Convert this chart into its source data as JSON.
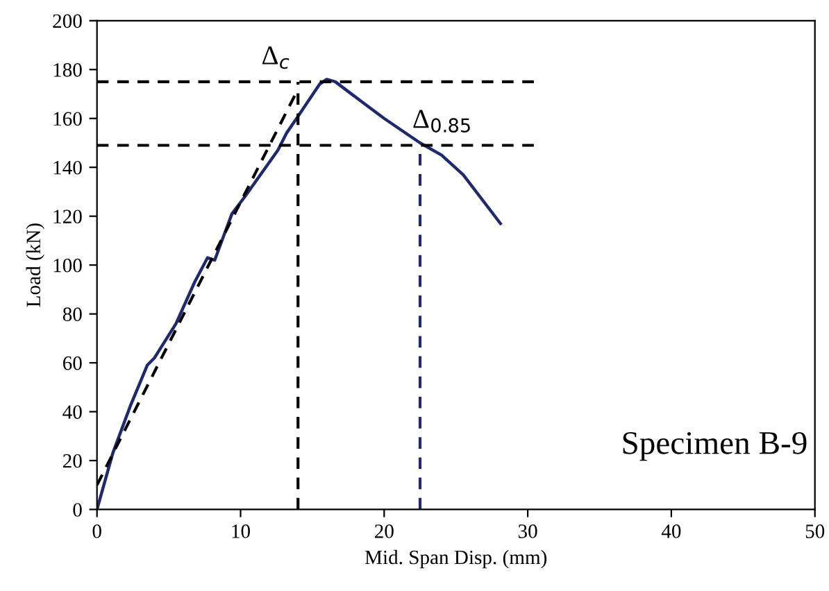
{
  "chart_data": {
    "type": "line",
    "xlabel": "Mid. Span Disp. (mm)",
    "ylabel": "Load (kN)",
    "xlim": [
      0,
      50
    ],
    "xticks": [
      0,
      10,
      20,
      30,
      40,
      50
    ],
    "ylim": [
      0,
      200
    ],
    "yticks": [
      0,
      20,
      40,
      60,
      80,
      100,
      120,
      140,
      160,
      180,
      200
    ],
    "grid": false,
    "legend": false,
    "series": [
      {
        "color": "#1f2a6e",
        "line_style": "solid",
        "x": [
          0,
          1.1,
          2.3,
          3.5,
          4.0,
          5.5,
          6.8,
          7.7,
          8.2,
          8.7,
          9.4,
          10.3,
          12.6,
          13.2,
          13.9,
          15.5,
          16.0,
          16.6,
          18.4,
          20,
          22.5,
          24,
          25.5,
          28.1
        ],
        "values": [
          0,
          23,
          42,
          59,
          62,
          76,
          93,
          103,
          102,
          110,
          121,
          128,
          147,
          154,
          160,
          174,
          176,
          175,
          167,
          160,
          150,
          145,
          137,
          117
        ]
      },
      {
        "color": "#000000",
        "line_style": "dashed",
        "x": [
          0,
          14
        ],
        "values": [
          10,
          172
        ]
      },
      {
        "color": "#000000",
        "line_style": "dashed",
        "x": [
          0,
          30.5
        ],
        "values": [
          175,
          175
        ]
      },
      {
        "color": "#000000",
        "line_style": "dashed",
        "x": [
          0,
          30.5
        ],
        "values": [
          149,
          149
        ]
      },
      {
        "color": "#000000",
        "line_style": "dashed",
        "x": [
          14,
          14
        ],
        "values": [
          0,
          175
        ]
      },
      {
        "color": "#1f2a6e",
        "line_style": "dashed",
        "x": [
          22.5,
          22.5
        ],
        "values": [
          0,
          149
        ]
      }
    ],
    "annotations": [
      {
        "text": "Δ$_{c}$",
        "x": 14,
        "y": 175
      },
      {
        "text": "Δ$_{0.85}$",
        "x": 22.5,
        "y": 149
      },
      "Specimen B-9"
    ]
  }
}
